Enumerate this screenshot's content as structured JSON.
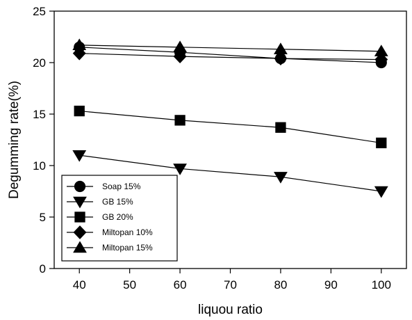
{
  "chart_data": {
    "type": "line",
    "xlabel": "liquou ratio",
    "ylabel": "Degumming rate(%)",
    "xlim": [
      35,
      105
    ],
    "ylim": [
      0,
      25
    ],
    "xticks": [
      40,
      50,
      60,
      70,
      80,
      90,
      100
    ],
    "yticks": [
      0,
      5,
      10,
      15,
      20,
      25
    ],
    "x": [
      40,
      60,
      80,
      100
    ],
    "grid": false,
    "legend_position": "bottom-left",
    "series": [
      {
        "name": "Soap 15%",
        "marker": "circle",
        "values": [
          21.5,
          21.0,
          20.4,
          20.0
        ]
      },
      {
        "name": "GB 15%",
        "marker": "triangle-down",
        "values": [
          11.0,
          9.7,
          8.9,
          7.5
        ]
      },
      {
        "name": "GB 20%",
        "marker": "square",
        "values": [
          15.3,
          14.4,
          13.7,
          12.2
        ]
      },
      {
        "name": "Miltopan 10%",
        "marker": "diamond",
        "values": [
          20.9,
          20.6,
          20.4,
          20.3
        ]
      },
      {
        "name": "Miltopan 15%",
        "marker": "triangle-up",
        "values": [
          21.7,
          21.5,
          21.3,
          21.1
        ]
      }
    ],
    "colors": {
      "line": "#000000",
      "marker": "#000000",
      "background": "#ffffff"
    }
  }
}
